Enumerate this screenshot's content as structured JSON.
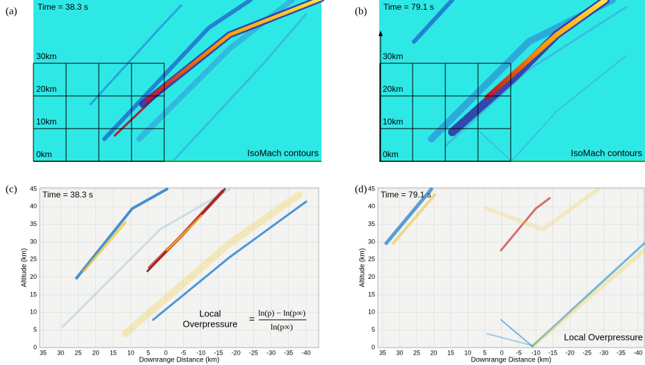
{
  "panels": [
    {
      "label": "(a)",
      "time": "Time = 38.3 s",
      "grid_labels": [
        "30km",
        "20km",
        "10km",
        "0km"
      ],
      "caption": "IsoMach contours"
    },
    {
      "label": "(b)",
      "time": "Time = 79.1 s",
      "grid_labels": [
        "30km",
        "20km",
        "10km",
        "0km"
      ],
      "caption": "IsoMach contours"
    },
    {
      "label": "(c)",
      "time": "Time = 38.3 s",
      "x_label": "Downrange Distance (km)",
      "y_label": "Altitude (km)",
      "xticks": [
        35,
        30,
        25,
        20,
        15,
        10,
        5,
        0,
        -5,
        -10,
        -15,
        -20,
        -25,
        -30,
        -35,
        -40
      ],
      "yticks": [
        0,
        5,
        10,
        15,
        20,
        25,
        30,
        35,
        40,
        45
      ],
      "formula": {
        "lhs_1": "Local",
        "lhs_2": "Overpressure",
        "equals": "=",
        "numerator": "ln(p) − ln(p∞)",
        "denominator": "ln(p∞)"
      }
    },
    {
      "label": "(d)",
      "time": "Time = 79.1 s",
      "x_label": "Downrange Distance (km)",
      "y_label": "Altitude (km)",
      "xticks": [
        35,
        30,
        25,
        20,
        15,
        10,
        5,
        0,
        -5,
        -10,
        -15,
        -20,
        -25,
        -30,
        -35,
        -40
      ],
      "yticks": [
        0,
        5,
        10,
        15,
        20,
        25,
        30,
        35,
        40,
        45
      ],
      "caption": "Local Overpressure"
    }
  ]
}
